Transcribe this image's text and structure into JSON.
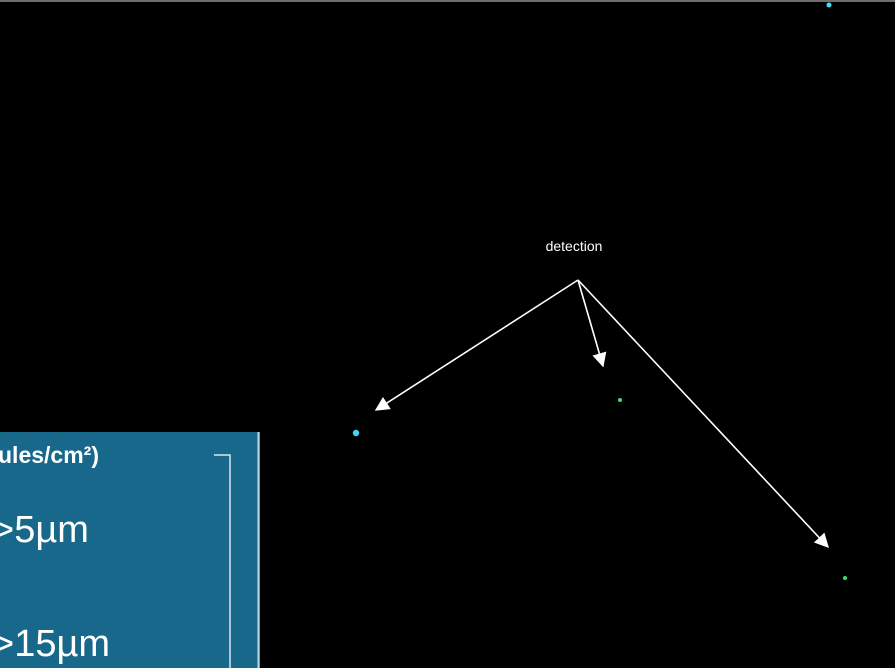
{
  "annotation": {
    "label": "detection"
  },
  "legend": {
    "unit": "ules/cm²)",
    "classes": [
      ">5µm",
      ">15µm"
    ]
  }
}
